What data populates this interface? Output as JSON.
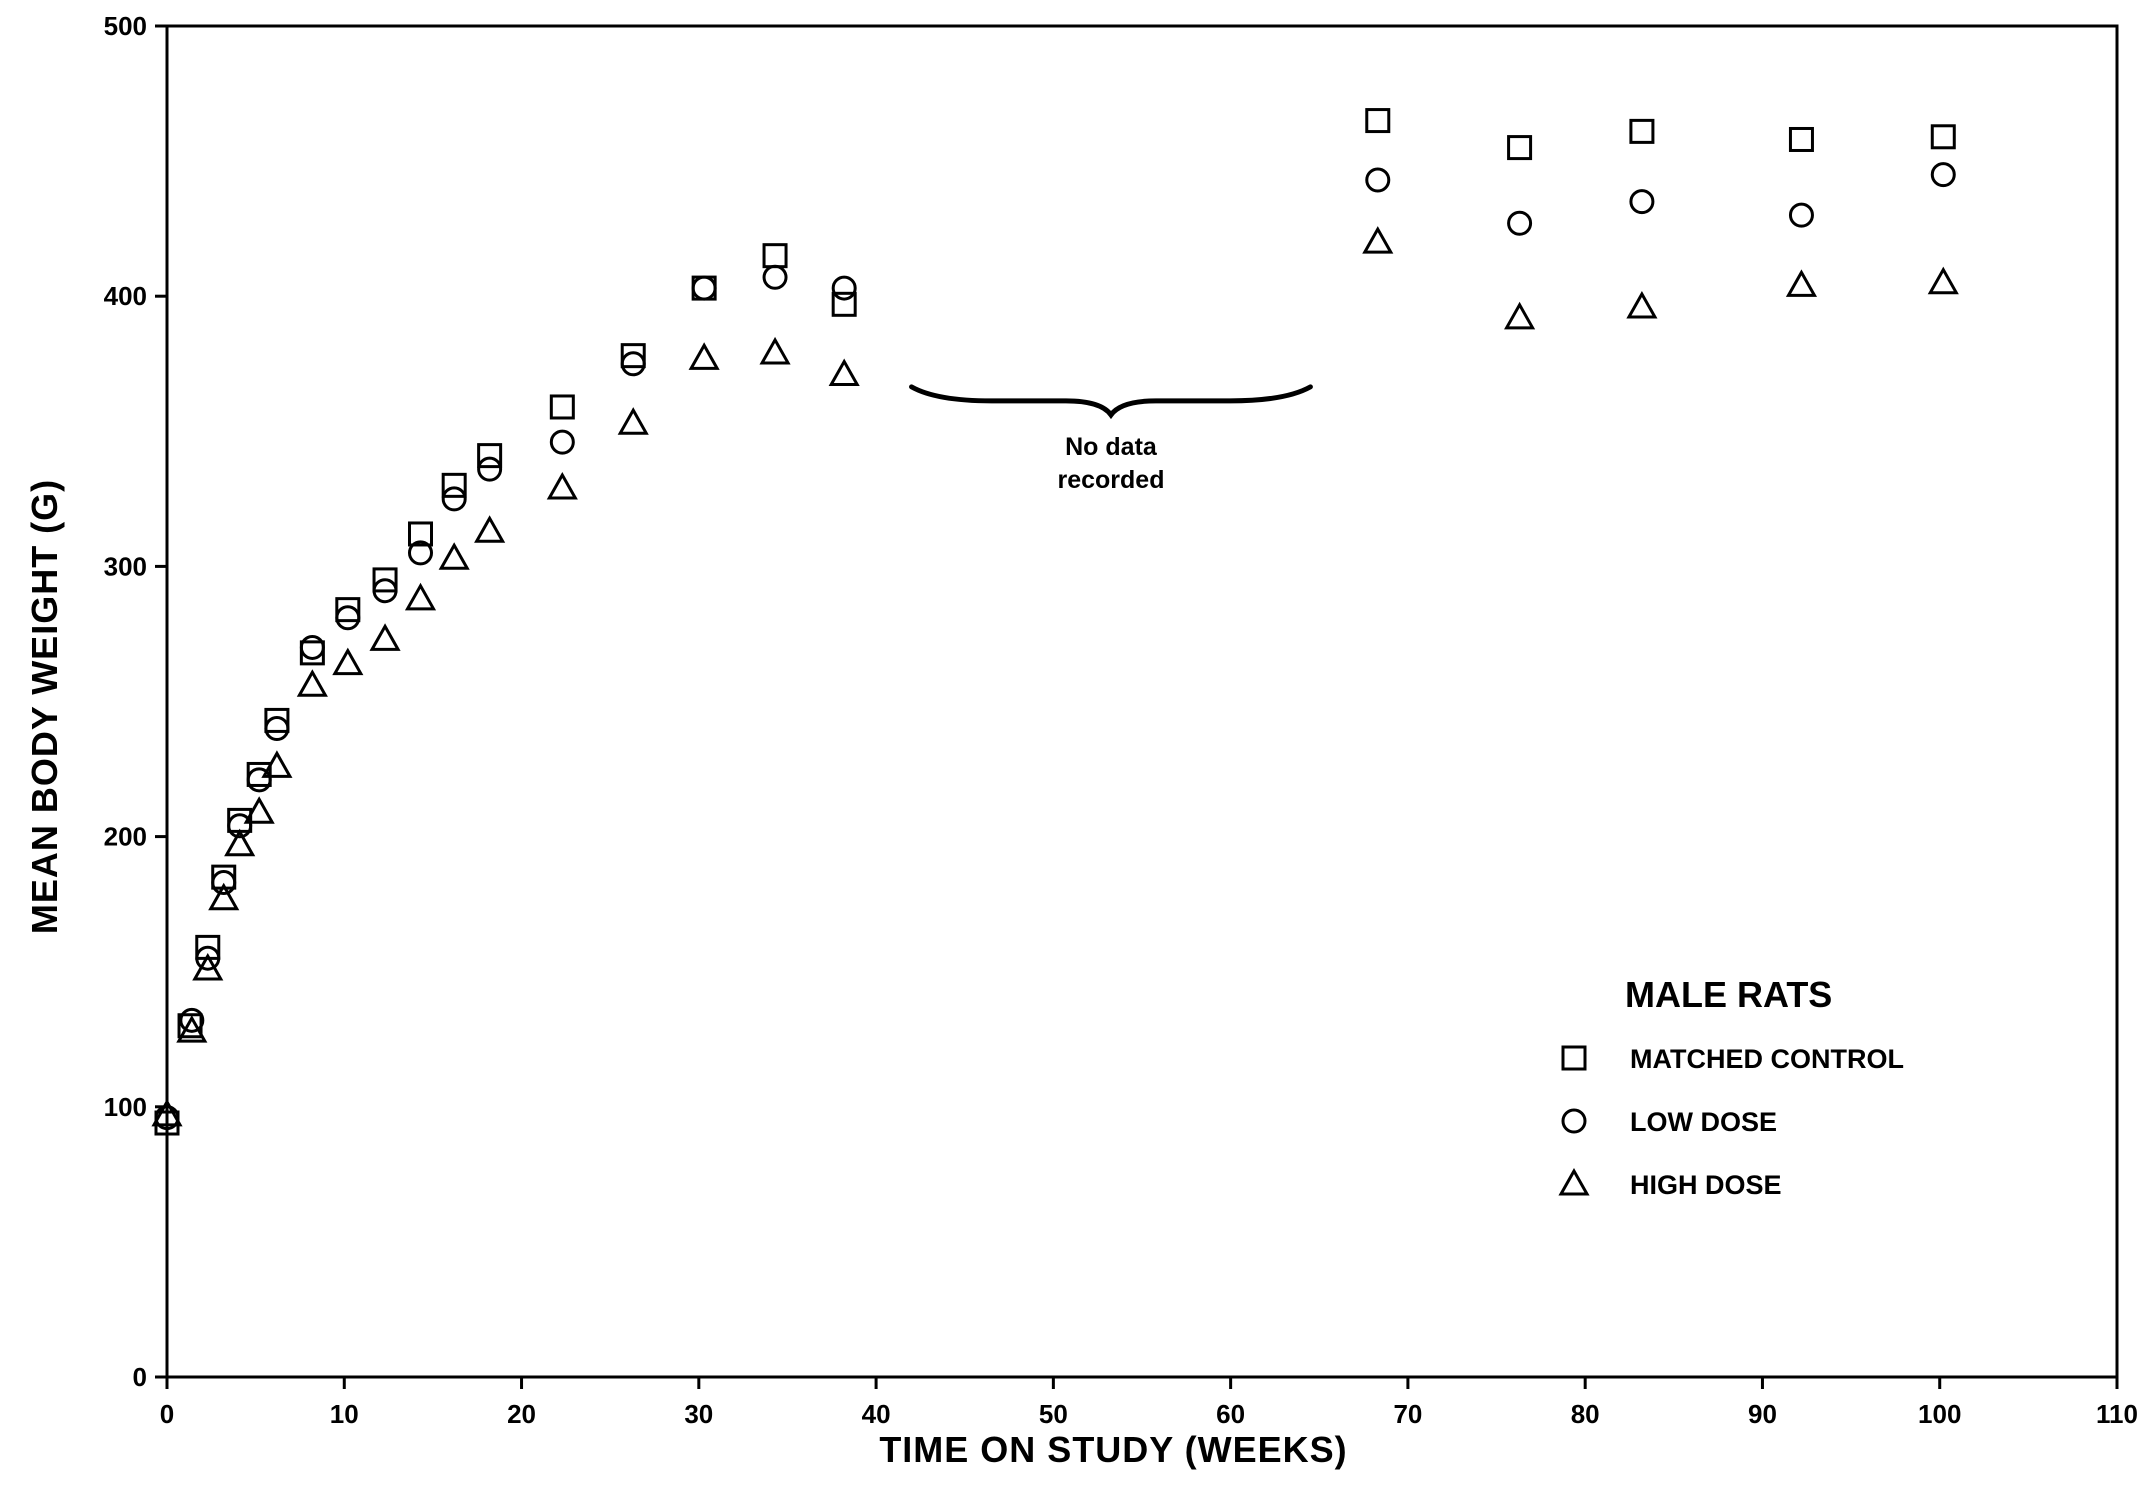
{
  "chart_data": {
    "type": "scatter",
    "xlabel": "TIME ON STUDY (WEEKS)",
    "ylabel": "MEAN BODY WEIGHT (G)",
    "xlim": [
      0,
      110
    ],
    "ylim": [
      0,
      500
    ],
    "xticks": [
      0,
      10,
      20,
      30,
      40,
      50,
      60,
      70,
      80,
      90,
      100,
      110
    ],
    "yticks": [
      0,
      100,
      200,
      300,
      400,
      500
    ],
    "grid": false,
    "legend": {
      "title": "MALE RATS",
      "position": "lower-right"
    },
    "series": [
      {
        "name": "MATCHED CONTROL",
        "marker": "square",
        "x": [
          0,
          1.3,
          2.3,
          3.2,
          4.1,
          5.2,
          6.2,
          8.2,
          10.2,
          12.3,
          14.3,
          16.2,
          18.2,
          22.3,
          26.3,
          30.3,
          34.3,
          38.2,
          68.3,
          76.3,
          83.2,
          92.2,
          100.2
        ],
        "y": [
          94,
          130,
          159,
          185,
          206,
          223,
          243,
          268,
          284,
          295,
          312,
          330,
          341,
          359,
          378,
          403,
          415,
          397,
          465,
          455,
          461,
          458,
          459
        ]
      },
      {
        "name": "LOW DOSE",
        "marker": "circle",
        "x": [
          0,
          1.4,
          2.3,
          3.2,
          4.1,
          5.2,
          6.2,
          8.2,
          10.2,
          12.3,
          14.3,
          16.2,
          18.2,
          22.3,
          26.3,
          30.3,
          34.3,
          38.2,
          68.3,
          76.3,
          83.2,
          92.2,
          100.2
        ],
        "y": [
          96,
          132,
          155,
          183,
          204,
          221,
          240,
          270,
          281,
          291,
          305,
          325,
          336,
          346,
          375,
          403,
          407,
          403,
          443,
          427,
          435,
          430,
          445
        ]
      },
      {
        "name": "HIGH DOSE",
        "marker": "triangle",
        "x": [
          0,
          1.4,
          2.3,
          3.2,
          4.1,
          5.2,
          6.2,
          8.2,
          10.2,
          12.3,
          14.3,
          16.2,
          18.2,
          22.3,
          26.3,
          30.3,
          34.3,
          38.2,
          68.3,
          76.3,
          83.2,
          92.2,
          100.2
        ],
        "y": [
          97,
          128,
          151,
          177,
          197,
          209,
          226,
          256,
          264,
          273,
          288,
          303,
          313,
          329,
          353,
          377,
          379,
          371,
          420,
          392,
          396,
          404,
          405
        ]
      }
    ],
    "annotations": [
      {
        "text_lines": [
          "No data",
          "recorded"
        ],
        "x_from": 42,
        "x_to": 64.5,
        "y": 362
      }
    ]
  }
}
